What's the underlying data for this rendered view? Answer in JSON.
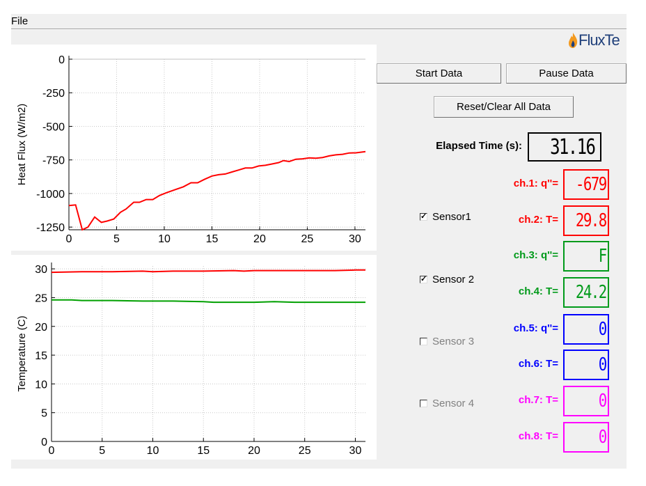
{
  "menu": {
    "file": "File"
  },
  "logo": {
    "text": "FluxTe"
  },
  "buttons": {
    "start": "Start Data",
    "pause": "Pause Data",
    "reset": "Reset/Clear All Data"
  },
  "elapsed": {
    "label": "Elapsed Time (s):",
    "value": "31.16"
  },
  "sensors": [
    {
      "label": "Sensor1",
      "checked": true,
      "enabled": true
    },
    {
      "label": "Sensor 2",
      "checked": true,
      "enabled": true
    },
    {
      "label": "Sensor 3",
      "checked": false,
      "enabled": false
    },
    {
      "label": "Sensor 4",
      "checked": false,
      "enabled": false
    }
  ],
  "channels": [
    {
      "label": "ch.1: q''=",
      "value": "-679",
      "color": "#ff0000"
    },
    {
      "label": "ch.2: T=",
      "value": "29.8",
      "color": "#ff0000"
    },
    {
      "label": "ch.3: q''=",
      "value": "F",
      "color": "#009a1a"
    },
    {
      "label": "ch.4: T=",
      "value": "24.2",
      "color": "#009a1a"
    },
    {
      "label": "ch.5: q''=",
      "value": "0",
      "color": "#0000ff"
    },
    {
      "label": "ch.6: T=",
      "value": "0",
      "color": "#0000ff"
    },
    {
      "label": "ch.7: T=",
      "value": "0",
      "color": "#ff00ff"
    },
    {
      "label": "ch.8: T=",
      "value": "0",
      "color": "#ff00ff"
    }
  ],
  "chart_data": [
    {
      "type": "line",
      "title": "",
      "xlabel": "",
      "ylabel": "Heat Flux (W/m2)",
      "xlim": [
        0,
        31.1
      ],
      "ylim": [
        -1270,
        0
      ],
      "xticks": [
        0,
        5,
        10,
        15,
        20,
        25,
        30
      ],
      "yticks": [
        0,
        -250,
        -500,
        -750,
        -1000,
        -1250
      ],
      "grid": true,
      "series": [
        {
          "color": "#ff0000",
          "x": [
            0,
            0.7,
            1.4,
            2,
            2.7,
            3.4,
            4,
            4.7,
            5.4,
            6,
            6.8,
            7.4,
            8.1,
            8.8,
            9.5,
            10.2,
            11,
            12,
            12.8,
            13.5,
            14.2,
            15,
            15.7,
            16.4,
            17.1,
            17.8,
            18.5,
            19.2,
            19.9,
            20.6,
            21.3,
            22,
            22.5,
            23.1,
            23.8,
            24.5,
            25.2,
            25.9,
            26.6,
            27.3,
            28,
            28.7,
            29.4,
            30.1,
            31.1
          ],
          "y": [
            -1090,
            -1085,
            -1280,
            -1250,
            -1175,
            -1215,
            -1205,
            -1190,
            -1140,
            -1115,
            -1065,
            -1065,
            -1045,
            -1045,
            -1015,
            -995,
            -975,
            -950,
            -920,
            -920,
            -895,
            -870,
            -860,
            -855,
            -840,
            -825,
            -810,
            -810,
            -795,
            -790,
            -780,
            -770,
            -755,
            -762,
            -745,
            -742,
            -735,
            -737,
            -732,
            -720,
            -712,
            -708,
            -698,
            -697,
            -688
          ]
        }
      ]
    },
    {
      "type": "line",
      "title": "",
      "xlabel": "",
      "ylabel": "Temperature (C)",
      "xlim": [
        0,
        31
      ],
      "ylim": [
        0,
        30.5
      ],
      "xticks": [
        0,
        5,
        10,
        15,
        20,
        25,
        30
      ],
      "yticks": [
        0,
        5,
        10,
        15,
        20,
        25,
        30
      ],
      "grid": true,
      "series": [
        {
          "color": "#ff0000",
          "x": [
            0,
            3,
            6,
            9,
            10,
            12,
            15,
            18,
            19,
            20,
            22,
            25,
            28,
            30,
            31
          ],
          "y": [
            29.4,
            29.5,
            29.5,
            29.6,
            29.5,
            29.6,
            29.6,
            29.7,
            29.6,
            29.7,
            29.7,
            29.7,
            29.7,
            29.8,
            29.8
          ]
        },
        {
          "color": "#00a000",
          "x": [
            0,
            2,
            3,
            6,
            9,
            10,
            12,
            15,
            16,
            18,
            20,
            22,
            24,
            25,
            28,
            31
          ],
          "y": [
            24.6,
            24.6,
            24.5,
            24.5,
            24.4,
            24.4,
            24.4,
            24.3,
            24.2,
            24.2,
            24.2,
            24.3,
            24.2,
            24.2,
            24.2,
            24.2
          ]
        }
      ]
    }
  ]
}
